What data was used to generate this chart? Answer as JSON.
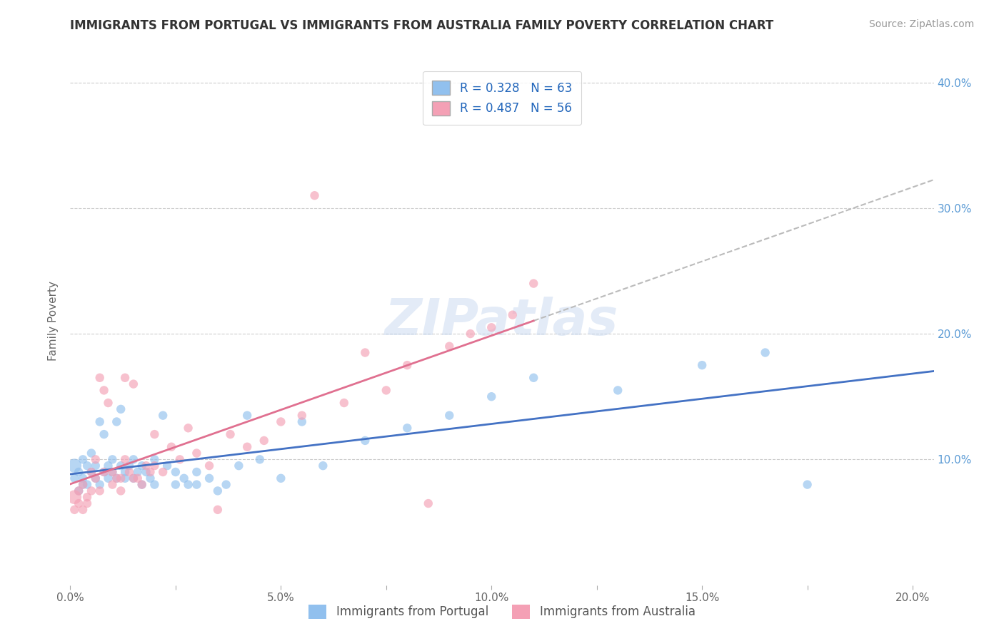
{
  "title": "IMMIGRANTS FROM PORTUGAL VS IMMIGRANTS FROM AUSTRALIA FAMILY POVERTY CORRELATION CHART",
  "source": "Source: ZipAtlas.com",
  "ylabel": "Family Poverty",
  "xlim": [
    0.0,
    0.205
  ],
  "ylim": [
    0.0,
    0.42
  ],
  "xtick_labels": [
    "0.0%",
    "",
    "5.0%",
    "",
    "10.0%",
    "",
    "15.0%",
    "",
    "20.0%"
  ],
  "xtick_vals": [
    0.0,
    0.025,
    0.05,
    0.075,
    0.1,
    0.125,
    0.15,
    0.175,
    0.2
  ],
  "ytick_labels": [
    "10.0%",
    "20.0%",
    "30.0%",
    "40.0%"
  ],
  "ytick_vals": [
    0.1,
    0.2,
    0.3,
    0.4
  ],
  "color_portugal": "#91C0EE",
  "color_australia": "#F4A0B5",
  "color_portugal_line": "#4472C4",
  "color_australia_line": "#E07090",
  "color_dashed": "#BBBBBB",
  "watermark_text": "ZIPatlas",
  "portugal_scatter": [
    [
      0.001,
      0.095
    ],
    [
      0.001,
      0.085
    ],
    [
      0.002,
      0.09
    ],
    [
      0.002,
      0.075
    ],
    [
      0.003,
      0.1
    ],
    [
      0.003,
      0.08
    ],
    [
      0.003,
      0.085
    ],
    [
      0.004,
      0.095
    ],
    [
      0.004,
      0.08
    ],
    [
      0.005,
      0.09
    ],
    [
      0.005,
      0.105
    ],
    [
      0.006,
      0.085
    ],
    [
      0.006,
      0.095
    ],
    [
      0.007,
      0.08
    ],
    [
      0.007,
      0.13
    ],
    [
      0.008,
      0.09
    ],
    [
      0.008,
      0.12
    ],
    [
      0.009,
      0.085
    ],
    [
      0.009,
      0.095
    ],
    [
      0.01,
      0.09
    ],
    [
      0.01,
      0.1
    ],
    [
      0.011,
      0.085
    ],
    [
      0.011,
      0.13
    ],
    [
      0.012,
      0.095
    ],
    [
      0.012,
      0.14
    ],
    [
      0.013,
      0.09
    ],
    [
      0.013,
      0.085
    ],
    [
      0.014,
      0.095
    ],
    [
      0.015,
      0.1
    ],
    [
      0.015,
      0.085
    ],
    [
      0.016,
      0.09
    ],
    [
      0.017,
      0.08
    ],
    [
      0.017,
      0.095
    ],
    [
      0.018,
      0.09
    ],
    [
      0.019,
      0.085
    ],
    [
      0.02,
      0.1
    ],
    [
      0.02,
      0.08
    ],
    [
      0.022,
      0.135
    ],
    [
      0.023,
      0.095
    ],
    [
      0.025,
      0.09
    ],
    [
      0.025,
      0.08
    ],
    [
      0.027,
      0.085
    ],
    [
      0.028,
      0.08
    ],
    [
      0.03,
      0.09
    ],
    [
      0.03,
      0.08
    ],
    [
      0.033,
      0.085
    ],
    [
      0.035,
      0.075
    ],
    [
      0.037,
      0.08
    ],
    [
      0.04,
      0.095
    ],
    [
      0.042,
      0.135
    ],
    [
      0.045,
      0.1
    ],
    [
      0.05,
      0.085
    ],
    [
      0.055,
      0.13
    ],
    [
      0.06,
      0.095
    ],
    [
      0.07,
      0.115
    ],
    [
      0.08,
      0.125
    ],
    [
      0.09,
      0.135
    ],
    [
      0.1,
      0.15
    ],
    [
      0.11,
      0.165
    ],
    [
      0.13,
      0.155
    ],
    [
      0.15,
      0.175
    ],
    [
      0.165,
      0.185
    ],
    [
      0.175,
      0.08
    ]
  ],
  "portugal_sizes": [
    200,
    80,
    80,
    80,
    80,
    80,
    80,
    80,
    80,
    80,
    80,
    80,
    80,
    80,
    80,
    80,
    80,
    80,
    80,
    80,
    80,
    80,
    80,
    80,
    80,
    80,
    80,
    80,
    80,
    80,
    80,
    80,
    80,
    80,
    80,
    80,
    80,
    80,
    80,
    80,
    80,
    80,
    80,
    80,
    80,
    80,
    80,
    80,
    80,
    80,
    80,
    80,
    80,
    80,
    80,
    80,
    80,
    80,
    80,
    80,
    80,
    80,
    80
  ],
  "australia_scatter": [
    [
      0.001,
      0.07
    ],
    [
      0.001,
      0.06
    ],
    [
      0.002,
      0.075
    ],
    [
      0.002,
      0.065
    ],
    [
      0.003,
      0.06
    ],
    [
      0.003,
      0.08
    ],
    [
      0.004,
      0.07
    ],
    [
      0.004,
      0.065
    ],
    [
      0.005,
      0.075
    ],
    [
      0.005,
      0.09
    ],
    [
      0.006,
      0.085
    ],
    [
      0.006,
      0.1
    ],
    [
      0.007,
      0.075
    ],
    [
      0.007,
      0.165
    ],
    [
      0.008,
      0.09
    ],
    [
      0.008,
      0.155
    ],
    [
      0.009,
      0.145
    ],
    [
      0.01,
      0.09
    ],
    [
      0.01,
      0.08
    ],
    [
      0.011,
      0.085
    ],
    [
      0.012,
      0.075
    ],
    [
      0.012,
      0.085
    ],
    [
      0.013,
      0.1
    ],
    [
      0.013,
      0.165
    ],
    [
      0.014,
      0.09
    ],
    [
      0.015,
      0.16
    ],
    [
      0.015,
      0.085
    ],
    [
      0.016,
      0.085
    ],
    [
      0.017,
      0.08
    ],
    [
      0.018,
      0.095
    ],
    [
      0.019,
      0.09
    ],
    [
      0.02,
      0.095
    ],
    [
      0.02,
      0.12
    ],
    [
      0.022,
      0.09
    ],
    [
      0.024,
      0.11
    ],
    [
      0.026,
      0.1
    ],
    [
      0.028,
      0.125
    ],
    [
      0.03,
      0.105
    ],
    [
      0.033,
      0.095
    ],
    [
      0.035,
      0.06
    ],
    [
      0.038,
      0.12
    ],
    [
      0.042,
      0.11
    ],
    [
      0.046,
      0.115
    ],
    [
      0.05,
      0.13
    ],
    [
      0.055,
      0.135
    ],
    [
      0.058,
      0.31
    ],
    [
      0.065,
      0.145
    ],
    [
      0.07,
      0.185
    ],
    [
      0.075,
      0.155
    ],
    [
      0.08,
      0.175
    ],
    [
      0.085,
      0.065
    ],
    [
      0.09,
      0.19
    ],
    [
      0.095,
      0.2
    ],
    [
      0.1,
      0.205
    ],
    [
      0.105,
      0.215
    ],
    [
      0.11,
      0.24
    ]
  ],
  "australia_sizes": [
    200,
    80,
    80,
    80,
    80,
    80,
    80,
    80,
    80,
    80,
    80,
    80,
    80,
    80,
    80,
    80,
    80,
    80,
    80,
    80,
    80,
    80,
    80,
    80,
    80,
    80,
    80,
    80,
    80,
    80,
    80,
    80,
    80,
    80,
    80,
    80,
    80,
    80,
    80,
    80,
    80,
    80,
    80,
    80,
    80,
    80,
    80,
    80,
    80,
    80,
    80,
    80,
    80,
    80,
    80,
    80
  ]
}
